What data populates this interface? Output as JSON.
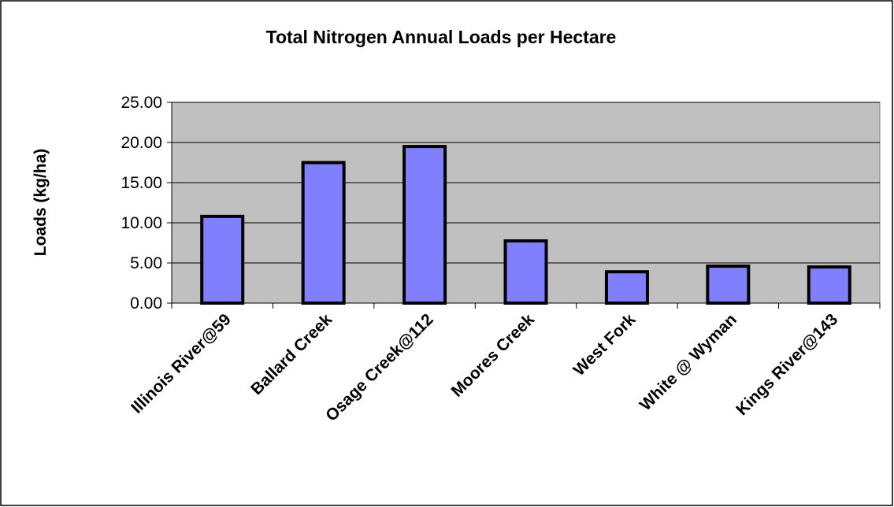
{
  "chart_data": {
    "type": "bar",
    "title": "Total Nitrogen Annual Loads per Hectare",
    "y_label": "Loads (kg/ha)",
    "categories": [
      "Illinois River@59",
      "Ballard Creek",
      "Osage Creek@112",
      "Moores Creek",
      "West Fork",
      "White @ Wyman",
      "Kings River@143"
    ],
    "values": [
      10.8,
      17.5,
      19.5,
      7.75,
      3.9,
      4.6,
      4.5
    ],
    "color": "#8080ff",
    "ylim": [
      0,
      25
    ],
    "yticks": [
      {
        "value": 0,
        "label": "0.00"
      },
      {
        "value": 5,
        "label": "5.00"
      },
      {
        "value": 10,
        "label": "10.00"
      },
      {
        "value": 15,
        "label": "15.00"
      },
      {
        "value": 20,
        "label": "20.00"
      },
      {
        "value": 25,
        "label": "25.00"
      }
    ],
    "grid": true
  }
}
